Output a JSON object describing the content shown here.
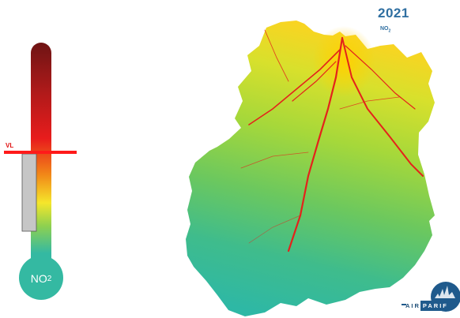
{
  "title": {
    "year": "2021",
    "pollutant": "NO",
    "pollutant_sub": "2"
  },
  "scale": {
    "limit_label": "VL",
    "limit_color": "#ff1a1a",
    "bulb_label": "NO",
    "bulb_sub": "2",
    "colors": [
      "#7a1414",
      "#e41c1c",
      "#f39c12",
      "#f5e62b",
      "#8fd14f",
      "#34b9a2"
    ],
    "current_level_fraction": 0.5
  },
  "map": {
    "region": "Essonne department",
    "colors": {
      "low": "#2eb8a5",
      "mid": "#a6d83a",
      "high": "#ffd000",
      "max": "#e4221b"
    }
  },
  "logo": {
    "text_left": "AIR",
    "text_right": "PARIF"
  }
}
